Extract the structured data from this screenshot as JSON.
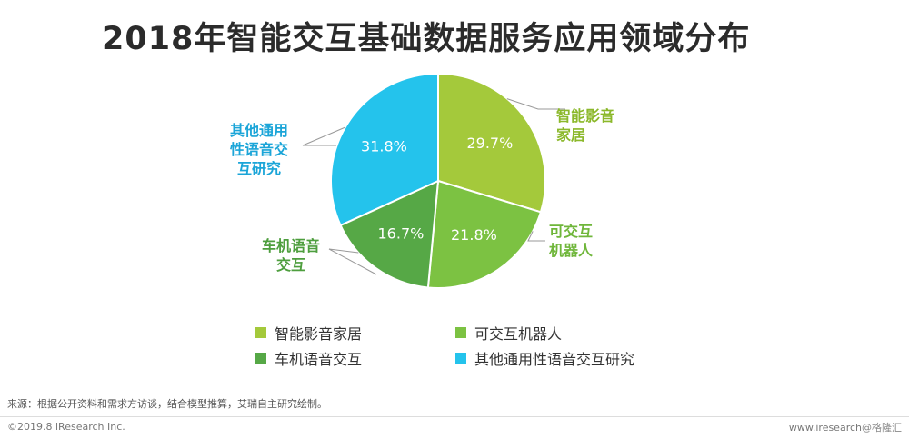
{
  "title": "2018年智能交互基础数据服务应用领域分布",
  "chart_data": {
    "type": "pie",
    "title": "2018年智能交互基础数据服务应用领域分布",
    "slices": [
      {
        "name": "智能影音家居",
        "value": 29.7,
        "label": "29.7%",
        "callout": [
          "智能影音",
          "家居"
        ],
        "color": "#a4c93b",
        "label_color": "#8bb82a"
      },
      {
        "name": "可交互机器人",
        "value": 21.8,
        "label": "21.8%",
        "callout": [
          "可交互",
          "机器人"
        ],
        "color": "#7cc242",
        "label_color": "#6fb63a"
      },
      {
        "name": "车机语音交互",
        "value": 16.7,
        "label": "16.7%",
        "callout": [
          "车机语音",
          "交互"
        ],
        "color": "#56a846",
        "label_color": "#4e9e3e"
      },
      {
        "name": "其他通用性语音交互研究",
        "value": 31.8,
        "label": "31.8%",
        "callout": [
          "其他通用",
          "性语音交",
          "互研究"
        ],
        "color": "#24c3ec",
        "label_color": "#1ba5d8"
      }
    ],
    "legend_position": "bottom"
  },
  "legend": [
    {
      "label": "智能影音家居",
      "color": "#a4c93b"
    },
    {
      "label": "可交互机器人",
      "color": "#7cc242"
    },
    {
      "label": "车机语音交互",
      "color": "#56a846"
    },
    {
      "label": "其他通用性语音交互研究",
      "color": "#24c3ec"
    }
  ],
  "source": "来源：根据公开资料和需求方访谈，结合模型推算，艾瑞自主研究绘制。",
  "copyright": "©2019.8 iResearch Inc.",
  "site": "www.iresearch",
  "watermark": "@格隆汇"
}
